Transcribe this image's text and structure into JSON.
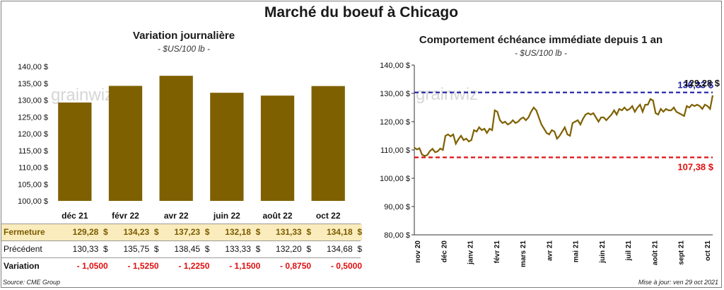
{
  "main_title": "Marché du boeuf à Chicago",
  "footer": {
    "source": "Source: CME Group",
    "update": "Mise à jour: ven 29 oct 2021"
  },
  "watermark": "grainwiz",
  "colors": {
    "bar": "#7f6000",
    "line": "#7f6000",
    "high_line": "#1f1fa8",
    "low_line": "#e01010",
    "fermeture_bg": "#fbecbd"
  },
  "table": {
    "rows": [
      {
        "label": "Fermeture",
        "values": [
          "129,28",
          "134,23",
          "137,23",
          "132,18",
          "131,33",
          "134,18"
        ],
        "unit": "$"
      },
      {
        "label": "Précédent",
        "values": [
          "130,33",
          "135,75",
          "138,45",
          "133,33",
          "132,20",
          "134,68"
        ],
        "unit": "$"
      },
      {
        "label": "Variation",
        "values": [
          "- 1,0500",
          "- 1,5250",
          "- 1,2250",
          "- 1,1500",
          "- 0,8750",
          "- 0,5000"
        ],
        "unit": ""
      }
    ]
  },
  "chart_data": [
    {
      "type": "bar",
      "title": "Variation  journalière",
      "subtitle": "- $US/100 lb -",
      "categories": [
        "déc 21",
        "févr 22",
        "avr 22",
        "juin 22",
        "août 22",
        "oct 22"
      ],
      "values": [
        129.28,
        134.23,
        137.23,
        132.18,
        131.33,
        134.18
      ],
      "ylim": [
        100,
        140
      ],
      "yticks": [
        "100,00 $",
        "105,00 $",
        "110,00 $",
        "115,00 $",
        "120,00 $",
        "125,00 $",
        "130,00 $",
        "135,00 $",
        "140,00 $"
      ],
      "grid": false
    },
    {
      "type": "line",
      "title": "Comportement  échéance immédiate depuis 1 an",
      "subtitle": "- $US/100 lb -",
      "ylim": [
        80,
        140
      ],
      "yticks": [
        "80,00 $",
        "90,00 $",
        "100,00 $",
        "110,00 $",
        "120,00 $",
        "130,00 $",
        "140,00 $"
      ],
      "xticks": [
        "nov 20",
        "déc 20",
        "janv 21",
        "févr 21",
        "mars 21",
        "avr 21",
        "mai 21",
        "juin 21",
        "juil 21",
        "août 21",
        "sept 21",
        "oct 21"
      ],
      "reference_lines": [
        {
          "value": 130.33,
          "label": "130,33 $",
          "style": "dashed",
          "color": "#1f1fa8"
        },
        {
          "value": 107.38,
          "label": "107,38 $",
          "style": "dashed",
          "color": "#e01010"
        }
      ],
      "last_value_label": "129,28 $",
      "series": [
        {
          "x": [
            0,
            0.1,
            0.2,
            0.3,
            0.4,
            0.5,
            0.6,
            0.7,
            0.8,
            0.9,
            1.0,
            1.1,
            1.2,
            1.3,
            1.4,
            1.5,
            1.6,
            1.7,
            1.8,
            1.9,
            2.0,
            2.1,
            2.2,
            2.3,
            2.4,
            2.5,
            2.6,
            2.7,
            2.8,
            2.9,
            3.0,
            3.1,
            3.2,
            3.3,
            3.4,
            3.5,
            3.6,
            3.7,
            3.8,
            3.9,
            4.0,
            4.1,
            4.2,
            4.3,
            4.4,
            4.5,
            4.6,
            4.7,
            4.8,
            4.9,
            5.0,
            5.1,
            5.2,
            5.3,
            5.4,
            5.5,
            5.6,
            5.7,
            5.8,
            5.9,
            6.0,
            6.1,
            6.2,
            6.3,
            6.4,
            6.5,
            6.6,
            6.7,
            6.8,
            6.9,
            7.0,
            7.1,
            7.2,
            7.3,
            7.4,
            7.5,
            7.6,
            7.7,
            7.8,
            7.9,
            8.0,
            8.1,
            8.2,
            8.3,
            8.4,
            8.5,
            8.6,
            8.7,
            8.8,
            8.9,
            9.0,
            9.1,
            9.2,
            9.3,
            9.4,
            9.5,
            9.6,
            9.7,
            9.8,
            9.9,
            10.0,
            10.1,
            10.2,
            10.3,
            10.4,
            10.5,
            10.6,
            10.7,
            10.8,
            10.9,
            11.0,
            11.1,
            11.2,
            11.3,
            11.4,
            11.5
          ],
          "values": [
            110.8,
            110.2,
            110.6,
            108.3,
            107.9,
            108.2,
            109.6,
            110.4,
            109.2,
            109.5,
            110.5,
            110.0,
            115.0,
            115.5,
            114.8,
            115.5,
            112.2,
            113.8,
            115.0,
            113.5,
            114.0,
            113.0,
            113.5,
            117.0,
            116.5,
            118.0,
            117.0,
            117.5,
            116.0,
            117.5,
            117.0,
            124.0,
            123.5,
            120.5,
            119.5,
            120.0,
            119.0,
            119.5,
            120.5,
            119.5,
            120.0,
            121.0,
            121.5,
            120.5,
            121.5,
            123.5,
            125.0,
            124.0,
            121.5,
            119.0,
            117.5,
            116.0,
            115.5,
            117.0,
            116.5,
            114.0,
            115.0,
            116.5,
            118.0,
            115.5,
            115.0,
            119.5,
            120.0,
            120.5,
            119.0,
            121.0,
            122.5,
            123.0,
            122.5,
            123.0,
            121.5,
            120.0,
            121.5,
            121.5,
            120.5,
            121.5,
            122.5,
            124.0,
            122.5,
            124.5,
            124.0,
            125.0,
            124.0,
            124.5,
            125.5,
            123.5,
            125.0,
            126.0,
            123.5,
            126.0,
            126.0,
            128.0,
            127.5,
            123.0,
            122.5,
            124.5,
            123.5,
            124.5,
            124.0,
            124.0,
            125.0,
            123.5,
            123.0,
            122.5,
            122.0,
            125.5,
            125.0,
            126.0,
            125.5,
            126.0,
            125.5,
            124.5,
            126.0,
            125.5,
            124.5,
            129.3
          ]
        }
      ]
    }
  ]
}
